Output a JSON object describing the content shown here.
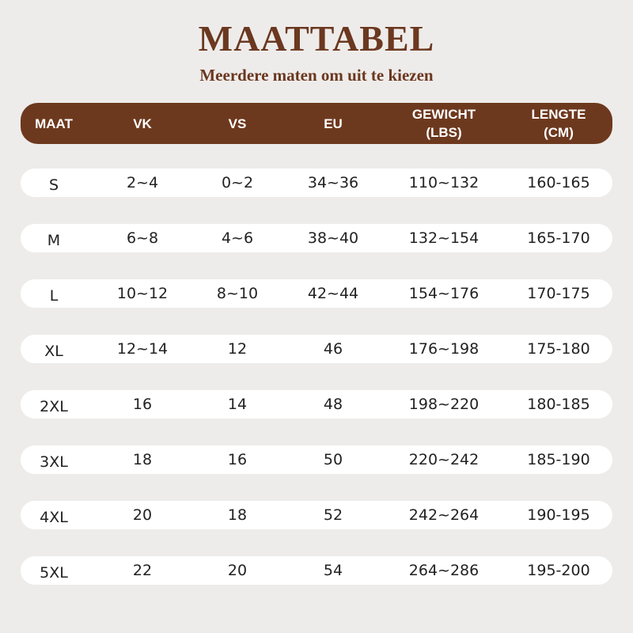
{
  "header": {
    "title": "MAATTABEL",
    "subtitle": "Meerdere maten om uit te kiezen"
  },
  "table": {
    "columns": [
      "MAAT",
      "VK",
      "VS",
      "EU",
      "GEWICHT\n(LBS)",
      "LENGTE\n(CM)"
    ],
    "rows": [
      [
        "S",
        "2~4",
        "0~2",
        "34~36",
        "110~132",
        "160-165"
      ],
      [
        "M",
        "6~8",
        "4~6",
        "38~40",
        "132~154",
        "165-170"
      ],
      [
        "L",
        "10~12",
        "8~10",
        "42~44",
        "154~176",
        "170-175"
      ],
      [
        "XL",
        "12~14",
        "12",
        "46",
        "176~198",
        "175-180"
      ],
      [
        "2XL",
        "16",
        "14",
        "48",
        "198~220",
        "180-185"
      ],
      [
        "3XL",
        "18",
        "16",
        "50",
        "220~242",
        "185-190"
      ],
      [
        "4XL",
        "20",
        "18",
        "52",
        "242~264",
        "190-195"
      ],
      [
        "5XL",
        "22",
        "20",
        "54",
        "264~286",
        "195-200"
      ]
    ]
  }
}
